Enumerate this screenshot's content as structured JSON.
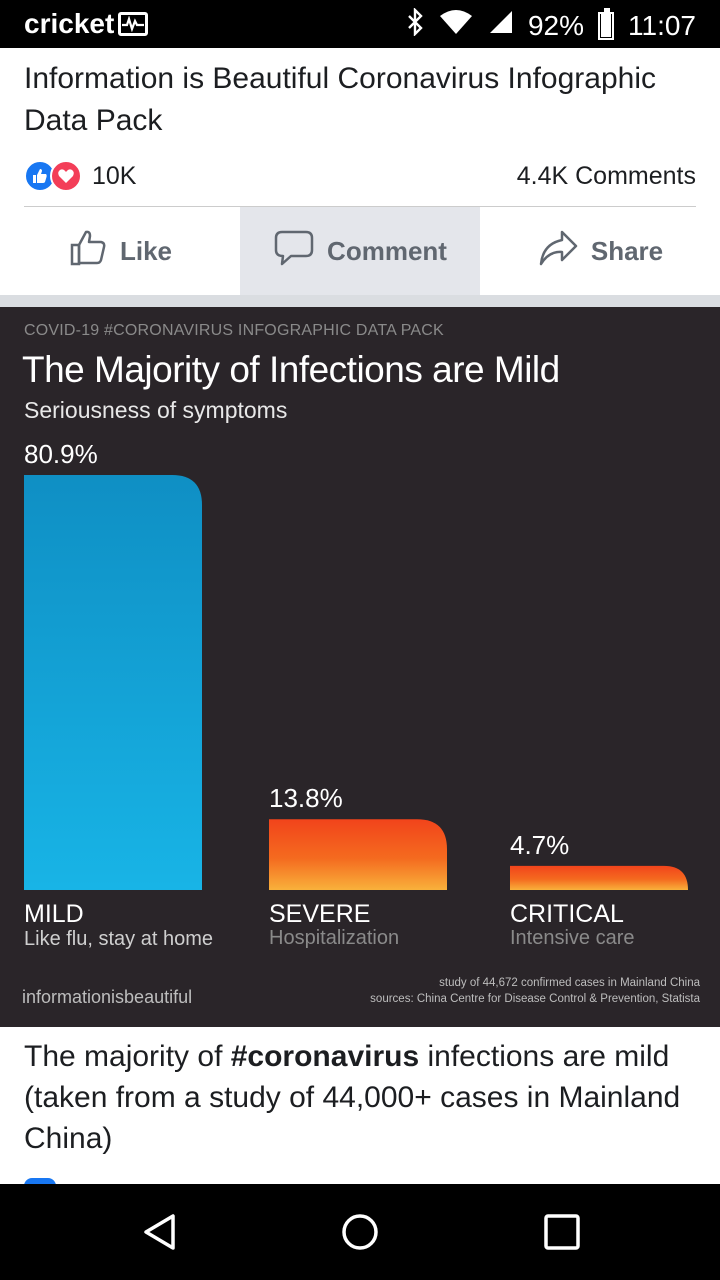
{
  "status": {
    "carrier": "cricket",
    "battery": "92%",
    "battery_level": 0.92,
    "time": "11:07",
    "icons": [
      "bluetooth-icon",
      "wifi-icon",
      "signal-icon",
      "battery-icon"
    ]
  },
  "post": {
    "title": "Information is Beautiful Coronavirus Infographic Data Pack",
    "reaction_count": "10K",
    "comments_count": "4.4K Comments",
    "actions": {
      "like": "Like",
      "comment": "Comment",
      "share": "Share"
    },
    "caption_prefix": "The majority of ",
    "caption_hashtag": "#coronavirus",
    "caption_suffix": " infections are mild (taken from a study of 44,000+ cases in Mainland China)"
  },
  "infographic": {
    "kicker": "COVID-19 #CORONAVIRUS INFOGRAPHIC DATA PACK",
    "title": "The Majority of Infections are Mild",
    "subtitle": "Seriousness of symptoms",
    "brand": "informationisbeautiful",
    "note_study": "study of 44,672 confirmed cases in Mainland China",
    "note_sources": "sources: China Centre for Disease Control & Prevention, Statista"
  },
  "chart_data": {
    "type": "bar",
    "title": "The Majority of Infections are Mild",
    "subtitle": "Seriousness of symptoms",
    "categories": [
      "MILD",
      "SEVERE",
      "CRITICAL"
    ],
    "descriptions": [
      "Like flu, stay at home",
      "Hospitalization",
      "Intensive care"
    ],
    "values": [
      80.9,
      13.8,
      4.7
    ],
    "value_labels": [
      "80.9%",
      "13.8%",
      "4.7%"
    ],
    "colors": [
      "#1aa9dc",
      "#f2541b",
      "#f2541b"
    ],
    "ylim": [
      0,
      80.9
    ],
    "grid": false
  },
  "colors": {
    "facebook_blue": "#1877f2",
    "love_red": "#f33e58",
    "infographic_bg": "#2a2529",
    "mild_blue": "#1aa9dc",
    "severe_orange": "#f2541b"
  },
  "nav": {
    "icons": [
      "back-icon",
      "home-icon",
      "recents-icon"
    ]
  }
}
